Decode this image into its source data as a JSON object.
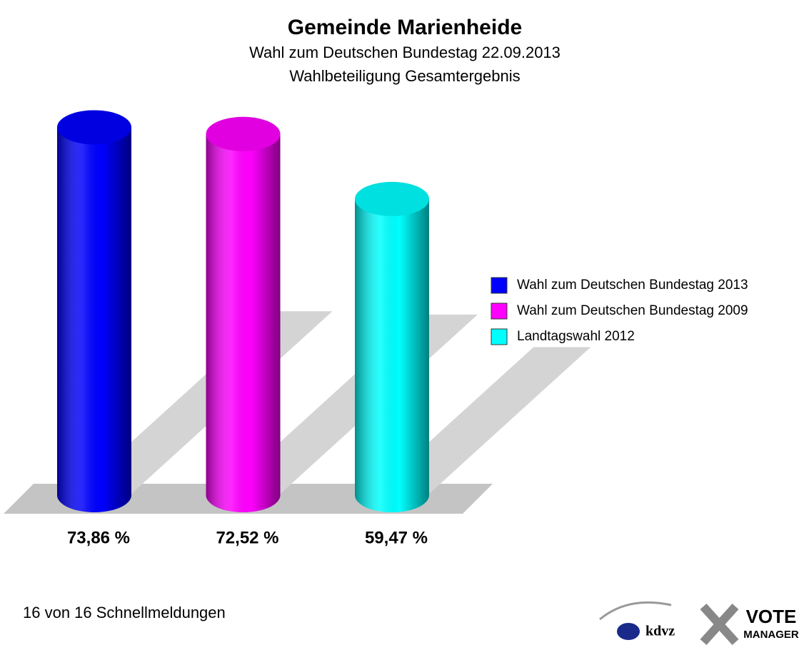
{
  "chart_data": {
    "type": "bar",
    "title": "Gemeinde Marienheide",
    "subtitle": [
      "Wahl zum Deutschen Bundestag 22.09.2013",
      "Wahlbeteiligung Gesamtergebnis"
    ],
    "categories": [
      "Wahl zum Deutschen Bundestag 2013",
      "Wahl zum Deutschen Bundestag 2009",
      "Landtagswahl 2012"
    ],
    "values": [
      73.86,
      72.52,
      59.47
    ],
    "value_labels": [
      "73,86 %",
      "72,52 %",
      "59,47 %"
    ],
    "colors": [
      "#0000ff",
      "#ff00ff",
      "#00ffff"
    ],
    "legend": "right"
  },
  "footer": {
    "note": "16 von 16 Schnellmeldungen",
    "logo": [
      "kdvz",
      "VOTE",
      "MANAGER"
    ]
  }
}
